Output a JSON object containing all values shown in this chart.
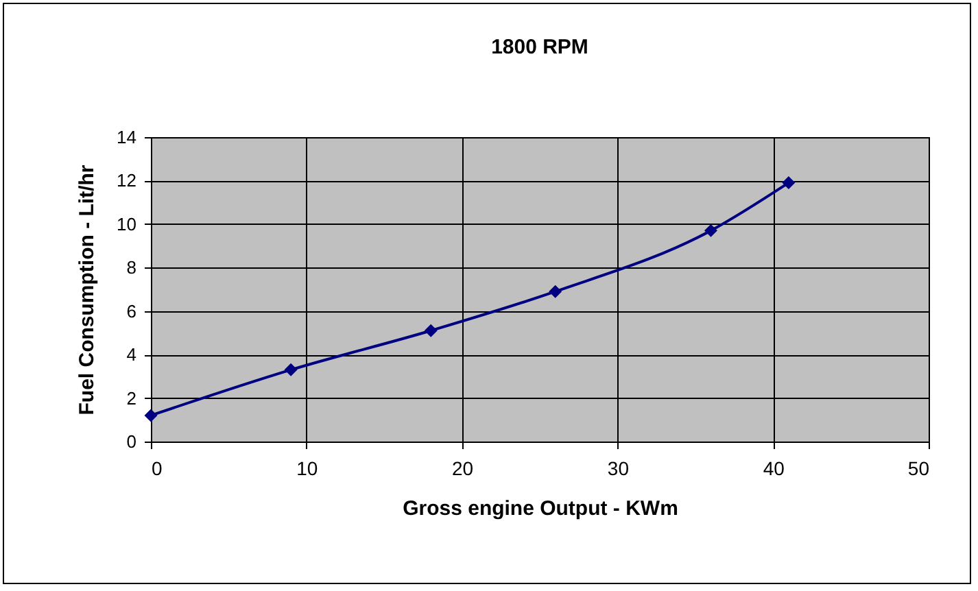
{
  "chart_data": {
    "type": "line",
    "title": "1800 RPM",
    "xlabel": "Gross engine Output - KWm",
    "ylabel": "Fuel Consumption - Lit/hr",
    "x": [
      0,
      9,
      18,
      26,
      36,
      41
    ],
    "series": [
      {
        "color": "#000080",
        "values": [
          1.2,
          3.3,
          5.1,
          6.9,
          9.7,
          11.9
        ]
      }
    ],
    "xlim": [
      0,
      50
    ],
    "xticks": [
      0,
      10,
      20,
      30,
      40,
      50
    ],
    "ylim": [
      0,
      14
    ],
    "yticks": [
      0,
      2,
      4,
      6,
      8,
      10,
      12,
      14
    ],
    "grid": true,
    "marker": "diamond",
    "line_style": "solid",
    "legend": false
  }
}
